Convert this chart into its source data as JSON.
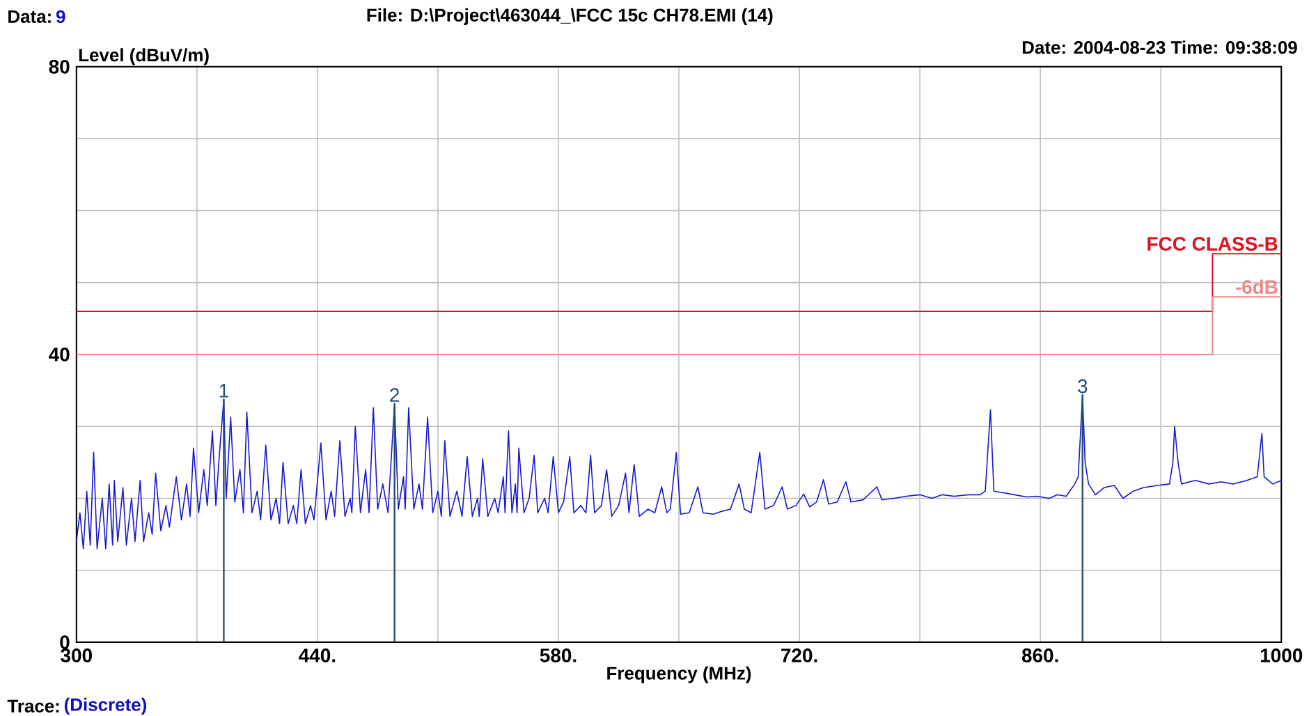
{
  "chart_data": {
    "type": "line",
    "title": "File: D:\\Project\\463044_\\FCC 15c CH78.EMI  (14)",
    "xlabel": "Frequency (MHz)",
    "ylabel": "Level (dBuV/m)",
    "annotations": [
      "Data:",
      "9",
      "Date: 2004-08-23  Time: 09:38:09",
      "Trace:",
      "(Discrete)",
      {
        "text": "1",
        "x": 385.6,
        "y": 33.8
      },
      {
        "text": "2",
        "x": 484.8,
        "y": 33.2
      },
      {
        "text": "3",
        "x": 884.5,
        "y": 34.4
      }
    ],
    "xlim": [
      300,
      1000
    ],
    "ylim": [
      0,
      80
    ],
    "xticks": [
      300,
      {
        "value": 370,
        "label": null
      },
      {
        "value": 440,
        "label": "440."
      },
      {
        "value": 510,
        "label": null
      },
      {
        "value": 580,
        "label": "580."
      },
      {
        "value": 650,
        "label": null
      },
      {
        "value": 720,
        "label": "720."
      },
      {
        "value": 790,
        "label": null
      },
      {
        "value": 860,
        "label": "860."
      },
      {
        "value": 930,
        "label": null
      },
      1000
    ],
    "yticks": [
      0,
      {
        "value": 10,
        "label": null
      },
      {
        "value": 20,
        "label": null
      },
      {
        "value": 30,
        "label": null
      },
      40,
      {
        "value": 50,
        "label": null
      },
      {
        "value": 60,
        "label": null
      },
      {
        "value": 70,
        "label": null
      },
      80
    ],
    "grid": true,
    "marker": "none",
    "line_style": "solid",
    "series": [
      {
        "name": "FCC CLASS-B",
        "type": "step",
        "color": "#e01020",
        "x": [
          300,
          960,
          1000
        ],
        "values": [
          46,
          54,
          54
        ]
      },
      {
        "name": "-6dB",
        "type": "step",
        "color": "#f08888",
        "x": [
          300,
          960,
          1000
        ],
        "values": [
          40,
          48,
          48
        ]
      },
      {
        "color": "#1818d0",
        "x": [
          300,
          302,
          304,
          306,
          308,
          310,
          312,
          315,
          317,
          319,
          321,
          322,
          324,
          327,
          329,
          332,
          334,
          337,
          339,
          342,
          344,
          346,
          349,
          352,
          354,
          358,
          361,
          364,
          366,
          368,
          371,
          374,
          376,
          379,
          381,
          383,
          385.6,
          387,
          389.6,
          392,
          395,
          397,
          399,
          402,
          405,
          407,
          410,
          413,
          416,
          418,
          420,
          423,
          426,
          428,
          430.5,
          433,
          436,
          438,
          442,
          445,
          448,
          450,
          453,
          456,
          459,
          460,
          462,
          465,
          468,
          470,
          472.5,
          475,
          478,
          481,
          484.8,
          487,
          490,
          491,
          493,
          496,
          499,
          501,
          504,
          507,
          510,
          512,
          514,
          517,
          521,
          524,
          527,
          530,
          533,
          534,
          536,
          539,
          543,
          545,
          548,
          549,
          551,
          553,
          555,
          556,
          557,
          560,
          563,
          565.9,
          568,
          572,
          574,
          577,
          580,
          583,
          586.6,
          589,
          593,
          596,
          598.7,
          601,
          605,
          608,
          611,
          615,
          619,
          621,
          624,
          627,
          632,
          636,
          640,
          643,
          645,
          648.5,
          651,
          656,
          661,
          664,
          670,
          675,
          680,
          685,
          688,
          692,
          697,
          700,
          705,
          710,
          713,
          718,
          722.5,
          726,
          730,
          734,
          737,
          742,
          747,
          750,
          757,
          765,
          768,
          775,
          782,
          790,
          797,
          803,
          810,
          818,
          825,
          828,
          831,
          833,
          838,
          845,
          852,
          858,
          865,
          870,
          875,
          880,
          882,
          884.5,
          886,
          888,
          892,
          897,
          903,
          908,
          914,
          920,
          928,
          935,
          937,
          938,
          940,
          942,
          950,
          958,
          965,
          972,
          980,
          986,
          988.7,
          990,
          995,
          1000
        ],
        "values": [
          14,
          18,
          13,
          21,
          13.5,
          26.4,
          13,
          20,
          13,
          22,
          13.5,
          22.5,
          14,
          21.5,
          13.5,
          20,
          14,
          22.5,
          14,
          18,
          15,
          23.5,
          15.5,
          19,
          16,
          23,
          17,
          22,
          17.5,
          27,
          18,
          24,
          19,
          29.4,
          19,
          26,
          33.8,
          20,
          31.3,
          19.5,
          24,
          18,
          32,
          18,
          21,
          17,
          27.4,
          17,
          20,
          16.5,
          25,
          16.5,
          19,
          16.5,
          24,
          16.5,
          19,
          17,
          27.7,
          17,
          21,
          17.5,
          28,
          17.5,
          20,
          18,
          30,
          18,
          24,
          18,
          32.6,
          18.5,
          22,
          18,
          33.2,
          18.5,
          23,
          18.5,
          32.6,
          18.5,
          22,
          18.5,
          31.3,
          18,
          21,
          17.5,
          28,
          17.5,
          21,
          17.5,
          25.8,
          17.5,
          20,
          17.5,
          25.5,
          17.5,
          20,
          18,
          23,
          18,
          29.4,
          18,
          22,
          18,
          27,
          18,
          20,
          26,
          18,
          20,
          18,
          25.8,
          18,
          19.5,
          25.8,
          18,
          19,
          18,
          26,
          18,
          19,
          24,
          17.5,
          19,
          23.5,
          18,
          24.7,
          17.5,
          18.5,
          18,
          21.6,
          18,
          18.5,
          26.4,
          17.8,
          18,
          21.6,
          18,
          17.8,
          18.2,
          18.5,
          22,
          18.5,
          18,
          26.4,
          18.5,
          19,
          21.6,
          18.5,
          19,
          20.6,
          18.8,
          19.5,
          22.6,
          19.2,
          19.5,
          22.3,
          19.5,
          19.8,
          21.6,
          19.8,
          20,
          20.3,
          20.5,
          20,
          20.5,
          20.3,
          20.5,
          20.5,
          21,
          32.3,
          21,
          20.8,
          20.5,
          20.2,
          20.3,
          20,
          20.5,
          20.3,
          22,
          23,
          34.4,
          25,
          22,
          20.5,
          21.5,
          21.8,
          20,
          21,
          21.5,
          21.8,
          22,
          25,
          30,
          25,
          22,
          22.5,
          22,
          22.3,
          22,
          22.5,
          23,
          29,
          23,
          22,
          22.5
        ]
      }
    ]
  }
}
